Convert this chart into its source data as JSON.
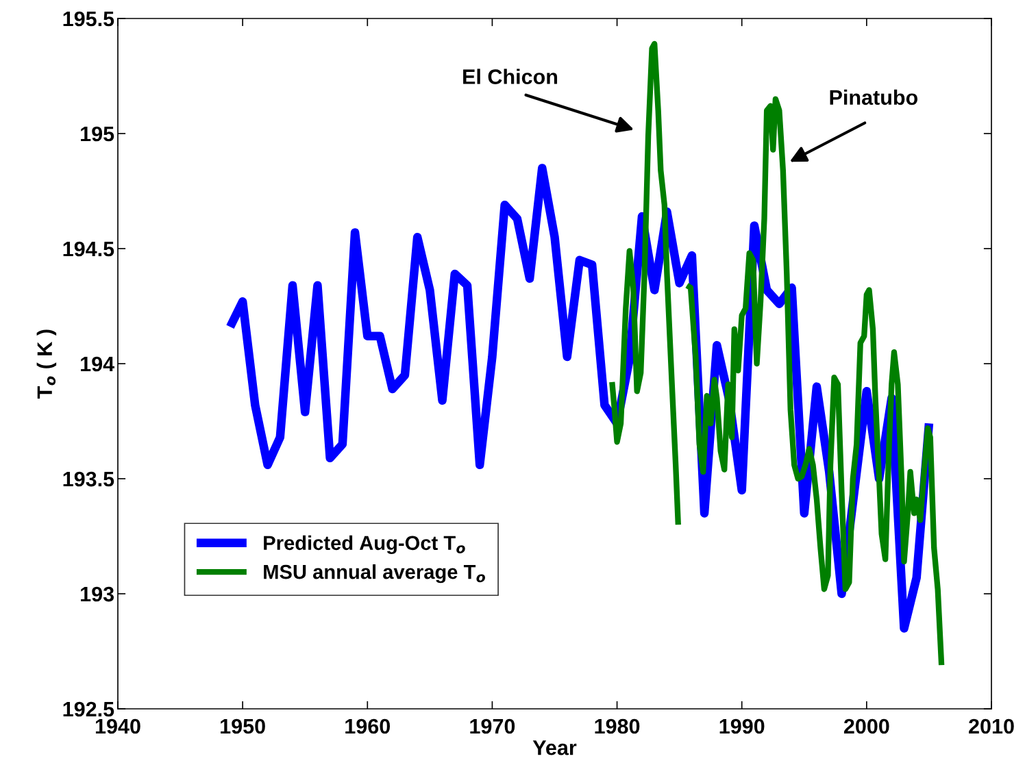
{
  "chart_data": {
    "type": "line",
    "xlabel": "Year",
    "ylabel": "T$_{o}$ ( K )",
    "xlim": [
      1940,
      2010
    ],
    "xticks": [
      1940,
      1950,
      1960,
      1970,
      1980,
      1990,
      2000,
      2010
    ],
    "ylim": [
      192.5,
      195.5
    ],
    "yticks": [
      192.5,
      193,
      193.5,
      194,
      194.5,
      195,
      195.5
    ],
    "grid": false,
    "legend": "bottom left",
    "marker": "none",
    "line_style": "solid",
    "series": [
      {
        "name": "Predicted Aug-Oct T$_{o}$",
        "color": "#0000ff",
        "x": [
          1949,
          1950,
          1951,
          1952,
          1953,
          1954,
          1955,
          1956,
          1957,
          1958,
          1959,
          1960,
          1961,
          1962,
          1963,
          1964,
          1965,
          1966,
          1967,
          1968,
          1969,
          1970,
          1971,
          1972,
          1973,
          1974,
          1975,
          1976,
          1977,
          1978,
          1979,
          1980,
          1981,
          1982,
          1983,
          1984,
          1985,
          1986,
          1987,
          1988,
          1989,
          1990,
          1991,
          1992,
          1993,
          1994,
          1995,
          1996,
          1997,
          1998,
          1999,
          2000,
          2001,
          2002,
          2003,
          2004,
          2005
        ],
        "values": [
          194.16,
          194.27,
          193.82,
          193.56,
          193.68,
          194.34,
          193.79,
          194.34,
          193.59,
          193.65,
          194.57,
          194.12,
          194.12,
          193.89,
          193.95,
          194.55,
          194.32,
          193.84,
          194.39,
          194.34,
          193.56,
          194.03,
          194.69,
          194.63,
          194.37,
          194.85,
          194.55,
          194.03,
          194.45,
          194.43,
          193.82,
          193.74,
          194.02,
          194.64,
          194.32,
          194.66,
          194.35,
          194.47,
          193.35,
          194.08,
          193.84,
          193.45,
          194.6,
          194.32,
          194.26,
          194.33,
          193.35,
          193.9,
          193.53,
          193.0,
          193.44,
          193.88,
          193.5,
          193.85,
          192.85,
          193.07,
          193.74
        ]
      },
      {
        "name": "MSU annual average T$_{o}$",
        "color": "#007f00",
        "x": [
          1979.6,
          1979.8,
          1980.0,
          1980.3,
          1980.7,
          1981.0,
          1981.3,
          1981.6,
          1981.9,
          1982.2,
          1982.5,
          1982.8,
          1983.0,
          1983.3,
          1983.5,
          1983.8,
          1984.0,
          1984.4,
          1984.7,
          1984.9,
          1985.2,
          1985.6,
          1985.9,
          1986.3,
          1986.6,
          1986.9,
          1987.2,
          1987.5,
          1987.8,
          1988.0,
          1988.3,
          1988.6,
          1988.9,
          1989.2,
          1989.4,
          1989.7,
          1990.0,
          1990.3,
          1990.6,
          1990.9,
          1991.2,
          1991.5,
          1991.8,
          1992.0,
          1992.3,
          1992.5,
          1992.7,
          1993.0,
          1993.3,
          1993.6,
          1993.9,
          1994.2,
          1994.5,
          1994.8,
          1995.1,
          1995.4,
          1995.7,
          1996.0,
          1996.3,
          1996.6,
          1996.9,
          1997.1,
          1997.4,
          1997.7,
          1998.0,
          1998.3,
          1998.6,
          1998.9,
          1999.2,
          1999.5,
          1999.8,
          2000.0,
          2000.2,
          2000.5,
          2000.7,
          2001.0,
          2001.2,
          2001.5,
          2001.8,
          2002.0,
          2002.2,
          2002.5,
          2002.8,
          2003.0,
          2003.3,
          2003.5,
          2003.8,
          2004.0,
          2004.3,
          2004.6,
          2004.9,
          2005.1,
          2005.4,
          2005.7,
          2006.0
        ],
        "values": [
          193.92,
          193.8,
          193.66,
          193.74,
          194.24,
          194.49,
          194.33,
          193.88,
          193.96,
          194.39,
          194.99,
          195.37,
          195.39,
          195.1,
          194.84,
          194.69,
          194.39,
          193.91,
          193.56,
          193.3,
          null,
          194.34,
          194.33,
          194.03,
          193.65,
          193.53,
          193.86,
          193.74,
          193.93,
          193.85,
          193.62,
          193.54,
          193.91,
          193.68,
          194.15,
          193.97,
          194.21,
          194.24,
          194.48,
          194.45,
          194.0,
          194.27,
          194.63,
          195.1,
          195.12,
          194.93,
          195.15,
          195.1,
          194.84,
          194.39,
          193.8,
          193.56,
          193.5,
          193.51,
          193.56,
          193.63,
          193.56,
          193.41,
          193.2,
          193.02,
          193.08,
          193.56,
          193.94,
          193.91,
          193.44,
          193.02,
          193.05,
          193.5,
          193.65,
          194.09,
          194.12,
          194.3,
          194.32,
          194.15,
          193.85,
          193.5,
          193.26,
          193.15,
          193.65,
          193.91,
          194.05,
          193.91,
          193.5,
          193.14,
          193.35,
          193.53,
          193.35,
          193.41,
          193.32,
          193.53,
          193.72,
          193.68,
          193.2,
          193.02,
          192.69
        ]
      }
    ],
    "annotations": [
      "El Chicon",
      "Pinatubo"
    ]
  }
}
